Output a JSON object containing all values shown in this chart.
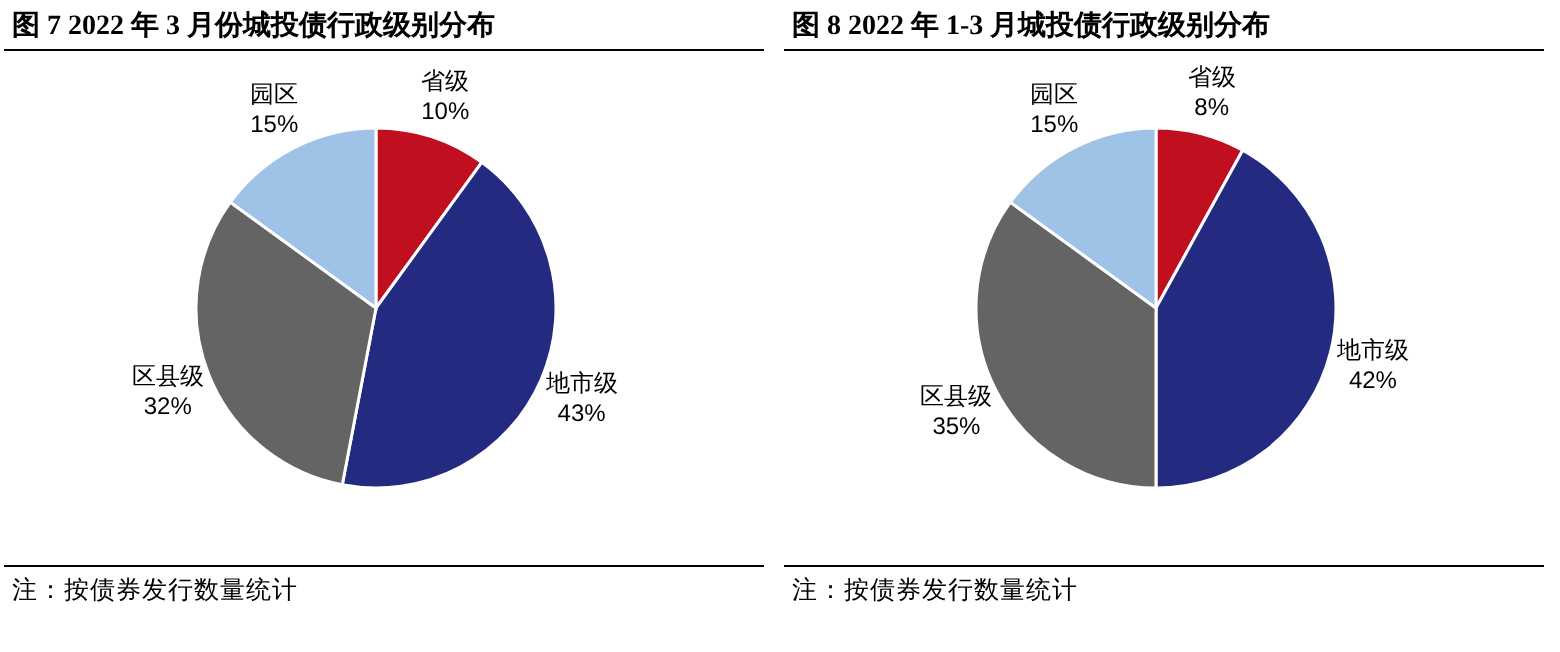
{
  "chart_data": [
    {
      "type": "pie",
      "title": "图 7    2022 年 3 月份城投债行政级别分布",
      "categories": [
        "省级",
        "地市级",
        "区县级",
        "园区"
      ],
      "values": [
        10,
        43,
        32,
        15
      ],
      "value_labels": [
        "10%",
        "43%",
        "32%",
        "15%"
      ],
      "colors": [
        "#c00f1f",
        "#232a80",
        "#646464",
        "#9ec3e7"
      ],
      "annotations": [
        "注：按债券发行数量统计"
      ]
    },
    {
      "type": "pie",
      "title": "图 8    2022 年 1-3 月城投债行政级别分布",
      "categories": [
        "省级",
        "地市级",
        "区县级",
        "园区"
      ],
      "values": [
        8,
        42,
        35,
        15
      ],
      "value_labels": [
        "8%",
        "42%",
        "35%",
        "15%"
      ],
      "colors": [
        "#c00f1f",
        "#232a80",
        "#646464",
        "#9ec3e7"
      ],
      "annotations": [
        "注：按债券发行数量统计"
      ]
    }
  ]
}
